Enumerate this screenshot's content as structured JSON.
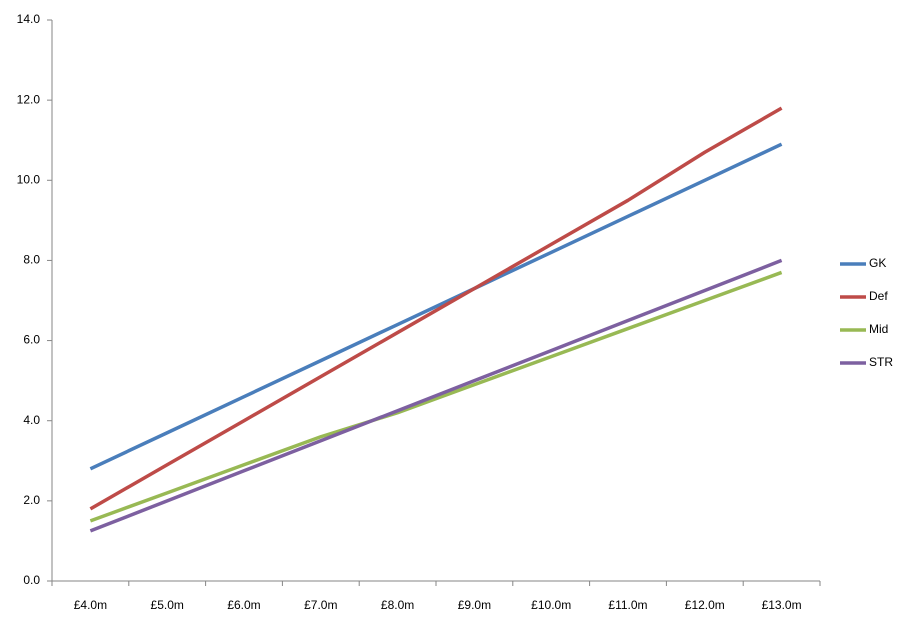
{
  "chart_data": {
    "type": "line",
    "categories": [
      "£4.0m",
      "£5.0m",
      "£6.0m",
      "£7.0m",
      "£8.0m",
      "£9.0m",
      "£10.0m",
      "£11.0m",
      "£12.0m",
      "£13.0m"
    ],
    "series": [
      {
        "name": "GK",
        "color": "#4a7ebb",
        "values": [
          2.8,
          3.7,
          4.6,
          5.5,
          6.4,
          7.3,
          8.2,
          9.1,
          10.0,
          10.9
        ]
      },
      {
        "name": "Def",
        "color": "#be4b48",
        "values": [
          1.8,
          2.9,
          4.0,
          5.1,
          6.2,
          7.3,
          8.4,
          9.5,
          10.7,
          11.8
        ]
      },
      {
        "name": "Mid",
        "color": "#98b954",
        "values": [
          1.5,
          2.2,
          2.9,
          3.6,
          4.2,
          4.9,
          5.6,
          6.3,
          7.0,
          7.7
        ]
      },
      {
        "name": "STR",
        "color": "#7d60a0",
        "values": [
          1.25,
          2.0,
          2.75,
          3.5,
          4.25,
          5.0,
          5.75,
          6.5,
          7.25,
          8.0
        ]
      }
    ],
    "ylim": [
      0,
      14
    ],
    "yticks": [
      {
        "value": 0,
        "label": "0.0"
      },
      {
        "value": 2,
        "label": "2.0"
      },
      {
        "value": 4,
        "label": "4.0"
      },
      {
        "value": 6,
        "label": "6.0"
      },
      {
        "value": 8,
        "label": "8.0"
      },
      {
        "value": 10,
        "label": "10.0"
      },
      {
        "value": 12,
        "label": "12.0"
      },
      {
        "value": 14,
        "label": "14.0"
      }
    ],
    "grid": false,
    "legend": "right"
  }
}
